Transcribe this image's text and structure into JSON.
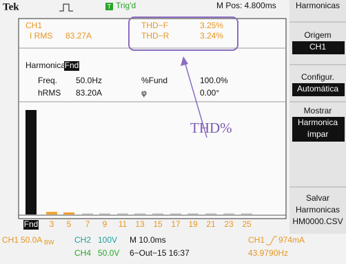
{
  "header": {
    "brand": "Tek",
    "trigger_badge": "T",
    "trigger_status": "Trig'd",
    "position": "M Pos: 4.800ms"
  },
  "measurements": {
    "channel": "CH1",
    "irms_label": "I RMS",
    "irms_value": "83.27A",
    "thdf_label": "THD−F",
    "thdf_value": "3.25%",
    "thdr_label": "THD−R",
    "thdr_value": "3.24%"
  },
  "harmonic_info": {
    "label": "Harmonica",
    "selected": "Fnd",
    "rows": [
      [
        "Freq.",
        "50.0Hz",
        "%Fund",
        "100.0%"
      ],
      [
        "hRMS",
        "83.20A",
        "φ",
        "0.00°"
      ]
    ]
  },
  "annotation": "THD%",
  "harmonics": {
    "labels": [
      "Fnd",
      "3",
      "5",
      "7",
      "9",
      "11",
      "13",
      "15",
      "17",
      "19",
      "21",
      "23",
      "25"
    ],
    "values": [
      100,
      2.5,
      2,
      0.5,
      0.5,
      0.5,
      0.5,
      0.5,
      0.5,
      0.5,
      0.5,
      0.5,
      0.5
    ],
    "colors": [
      "#111",
      "#f0a030",
      "#f0a030",
      "#bbb",
      "#bbb",
      "#bbb",
      "#bbb",
      "#bbb",
      "#bbb",
      "#bbb",
      "#bbb",
      "#bbb",
      "#bbb"
    ]
  },
  "status": {
    "row1": {
      "ch1": "CH1",
      "ch1_scale": "50.0A",
      "ch1_bw": "BW",
      "ch2": "CH2",
      "ch2_scale": "100V",
      "timebase": "M 10.0ms",
      "trig_ch": "CH1",
      "trig_level": "974mA"
    },
    "row2": {
      "ch4": "CH4",
      "ch4_scale": "50.0V",
      "datetime": "6−Out−15 16:37",
      "frequency": "43.9790Hz"
    }
  },
  "menu": {
    "title": "Harmonicas",
    "items": [
      {
        "label": [
          "Origem"
        ],
        "value": [
          "CH1"
        ]
      },
      {
        "label": [
          "Configur."
        ],
        "value": [
          "Automática"
        ]
      },
      {
        "label": [
          "Mostrar"
        ],
        "value": [
          "Harmonica",
          "ímpar"
        ]
      },
      {
        "label": [
          "Salvar",
          "Harmonicas",
          "HM0000.CSV"
        ]
      }
    ]
  }
}
